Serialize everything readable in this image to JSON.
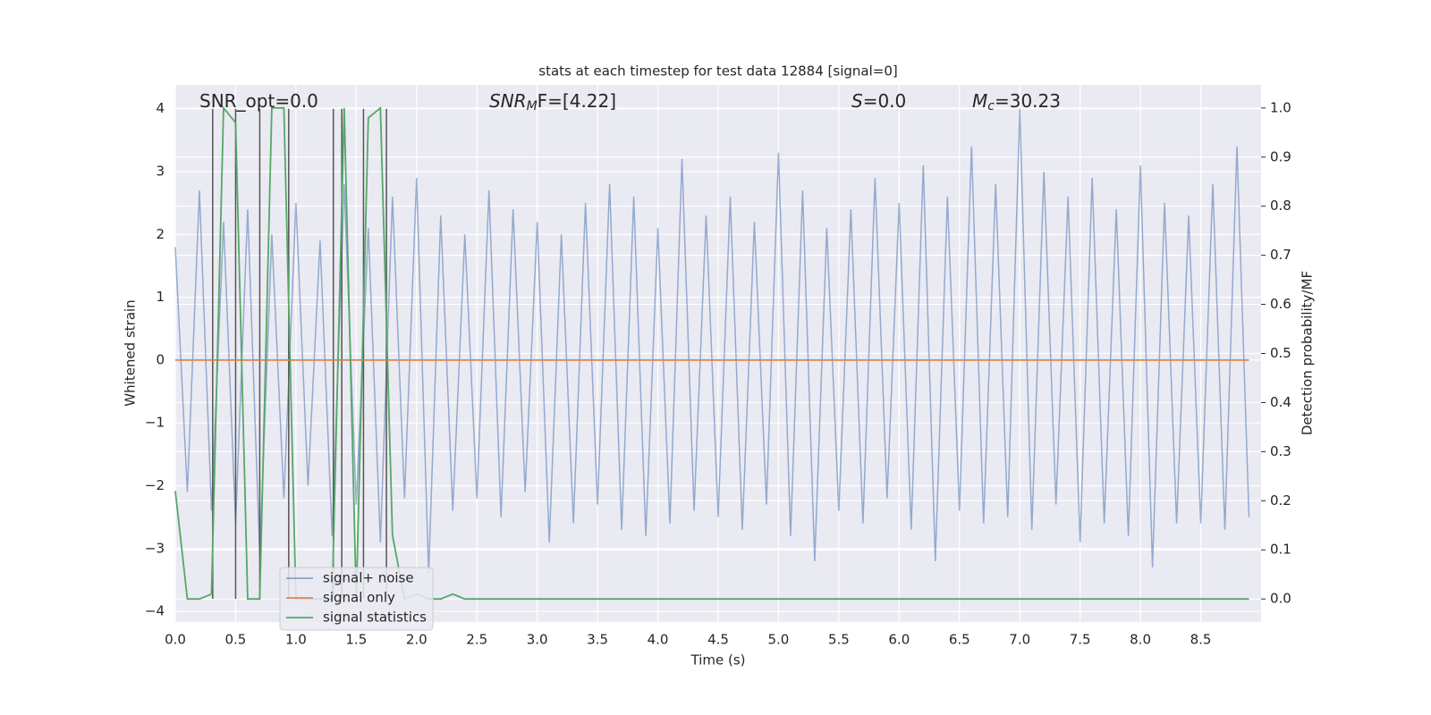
{
  "chart_data": {
    "type": "line",
    "title": "stats at each timestep for test data 12884 [signal=0]",
    "xlabel": "Time (s)",
    "ylabel": "Whitened strain",
    "y2label": "Detection probability/MF",
    "annotations": [
      {
        "base": "SNR_opt=0.0"
      },
      {
        "base": "SNR",
        "sub": "M",
        "rest": "F=[4.22]"
      },
      {
        "base": "S",
        "rest": "=0.0"
      },
      {
        "base": "M",
        "sub": "c",
        "rest": "=30.23"
      }
    ],
    "x": [
      0.0,
      0.1,
      0.2,
      0.3,
      0.4,
      0.5,
      0.6,
      0.7,
      0.8,
      0.9,
      1.0,
      1.1,
      1.2,
      1.3,
      1.4,
      1.5,
      1.6,
      1.7,
      1.8,
      1.9,
      2.0,
      2.1,
      2.2,
      2.3,
      2.4,
      2.5,
      2.6,
      2.7,
      2.8,
      2.9,
      3.0,
      3.1,
      3.2,
      3.3,
      3.4,
      3.5,
      3.6,
      3.7,
      3.8,
      3.9,
      4.0,
      4.1,
      4.2,
      4.3,
      4.4,
      4.5,
      4.6,
      4.7,
      4.8,
      4.9,
      5.0,
      5.1,
      5.2,
      5.3,
      5.4,
      5.5,
      5.6,
      5.7,
      5.8,
      5.9,
      6.0,
      6.1,
      6.2,
      6.3,
      6.4,
      6.5,
      6.6,
      6.7,
      6.8,
      6.9,
      7.0,
      7.1,
      7.2,
      7.3,
      7.4,
      7.5,
      7.6,
      7.7,
      7.8,
      7.9,
      8.0,
      8.1,
      8.2,
      8.3,
      8.4,
      8.5,
      8.6,
      8.7,
      8.8,
      8.9
    ],
    "series": [
      {
        "name": "signal+ noise",
        "color": "#4c72b0",
        "values": [
          1.8,
          -2.1,
          2.7,
          -2.4,
          2.2,
          -2.6,
          2.4,
          -3.1,
          2.0,
          -2.2,
          2.5,
          -2.0,
          1.9,
          -2.8,
          2.8,
          -2.3,
          2.1,
          -2.9,
          2.6,
          -2.2,
          2.9,
          -3.4,
          2.3,
          -2.4,
          2.0,
          -2.2,
          2.7,
          -2.5,
          2.4,
          -2.1,
          2.2,
          -2.9,
          2.0,
          -2.6,
          2.5,
          -2.3,
          2.8,
          -2.7,
          2.6,
          -2.8,
          2.1,
          -2.6,
          3.2,
          -2.4,
          2.3,
          -2.5,
          2.6,
          -2.7,
          2.2,
          -2.3,
          3.3,
          -2.8,
          2.7,
          -3.2,
          2.1,
          -2.4,
          2.4,
          -2.6,
          2.9,
          -2.2,
          2.5,
          -2.7,
          3.1,
          -3.2,
          2.6,
          -2.4,
          3.4,
          -2.6,
          2.8,
          -2.5,
          4.0,
          -2.7,
          3.0,
          -2.3,
          2.6,
          -2.9,
          2.9,
          -2.6,
          2.4,
          -2.8,
          3.1,
          -3.3,
          2.5,
          -2.6,
          2.3,
          -2.6,
          2.8,
          -2.7,
          3.4,
          -2.5
        ]
      },
      {
        "name": "signal only",
        "color": "#dd8452",
        "values": [
          0,
          0,
          0,
          0,
          0,
          0,
          0,
          0,
          0,
          0,
          0,
          0,
          0,
          0,
          0,
          0,
          0,
          0,
          0,
          0,
          0,
          0,
          0,
          0,
          0,
          0,
          0,
          0,
          0,
          0,
          0,
          0,
          0,
          0,
          0,
          0,
          0,
          0,
          0,
          0,
          0,
          0,
          0,
          0,
          0,
          0,
          0,
          0,
          0,
          0,
          0,
          0,
          0,
          0,
          0,
          0,
          0,
          0,
          0,
          0,
          0,
          0,
          0,
          0,
          0,
          0,
          0,
          0,
          0,
          0,
          0,
          0,
          0,
          0,
          0,
          0,
          0,
          0,
          0,
          0,
          0,
          0,
          0,
          0,
          0,
          0,
          0,
          0,
          0,
          0
        ]
      },
      {
        "name": "signal statistics",
        "color": "#55a868",
        "axis": "y2",
        "values": [
          0.22,
          0,
          0,
          0.01,
          1.0,
          0.97,
          0,
          0,
          1.0,
          1.0,
          0,
          0,
          0,
          0,
          1.0,
          0,
          0.98,
          1.0,
          0.13,
          0,
          0.01,
          0,
          0,
          0.01,
          0,
          0,
          0,
          0,
          0,
          0,
          0,
          0,
          0,
          0,
          0,
          0,
          0,
          0,
          0,
          0,
          0,
          0,
          0,
          0,
          0,
          0,
          0,
          0,
          0,
          0,
          0,
          0,
          0,
          0,
          0,
          0,
          0,
          0,
          0,
          0,
          0,
          0,
          0,
          0,
          0,
          0,
          0,
          0,
          0,
          0,
          0,
          0,
          0,
          0,
          0,
          0,
          0,
          0,
          0,
          0,
          0,
          0,
          0,
          0,
          0,
          0,
          0,
          0,
          0,
          0
        ]
      }
    ],
    "vlines": {
      "x": [
        0.31,
        0.5,
        0.7,
        0.94,
        1.31,
        1.38,
        1.56,
        1.75
      ],
      "ymin": -3.8,
      "ymax": 4.0,
      "color": "#555555"
    },
    "xlim": [
      0,
      9.0
    ],
    "ylim": [
      -4.17,
      4.38
    ],
    "y2lim": [
      -0.047,
      1.047
    ],
    "xticks": [
      {
        "value": 0,
        "label": "0.0"
      },
      {
        "value": 0.5,
        "label": "0.5"
      },
      {
        "value": 1,
        "label": "1.0"
      },
      {
        "value": 1.5,
        "label": "1.5"
      },
      {
        "value": 2,
        "label": "2.0"
      },
      {
        "value": 2.5,
        "label": "2.5"
      },
      {
        "value": 3,
        "label": "3.0"
      },
      {
        "value": 3.5,
        "label": "3.5"
      },
      {
        "value": 4,
        "label": "4.0"
      },
      {
        "value": 4.5,
        "label": "4.5"
      },
      {
        "value": 5,
        "label": "5.0"
      },
      {
        "value": 5.5,
        "label": "5.5"
      },
      {
        "value": 6,
        "label": "6.0"
      },
      {
        "value": 6.5,
        "label": "6.5"
      },
      {
        "value": 7,
        "label": "7.0"
      },
      {
        "value": 7.5,
        "label": "7.5"
      },
      {
        "value": 8,
        "label": "8.0"
      },
      {
        "value": 8.5,
        "label": "8.5"
      }
    ],
    "yticks": [
      {
        "value": -4,
        "label": "−4"
      },
      {
        "value": -3,
        "label": "−3"
      },
      {
        "value": -2,
        "label": "−2"
      },
      {
        "value": -1,
        "label": "−1"
      },
      0,
      1,
      2,
      3,
      4
    ],
    "y2ticks": [
      {
        "value": 0,
        "label": "0.0"
      },
      {
        "value": 0.1,
        "label": "0.1"
      },
      {
        "value": 0.2,
        "label": "0.2"
      },
      {
        "value": 0.3,
        "label": "0.3"
      },
      {
        "value": 0.4,
        "label": "0.4"
      },
      {
        "value": 0.5,
        "label": "0.5"
      },
      {
        "value": 0.6,
        "label": "0.6"
      },
      {
        "value": 0.7,
        "label": "0.7"
      },
      {
        "value": 0.8,
        "label": "0.8"
      },
      {
        "value": 0.9,
        "label": "0.9"
      },
      {
        "value": 1,
        "label": "1.0"
      }
    ],
    "grid": true
  }
}
